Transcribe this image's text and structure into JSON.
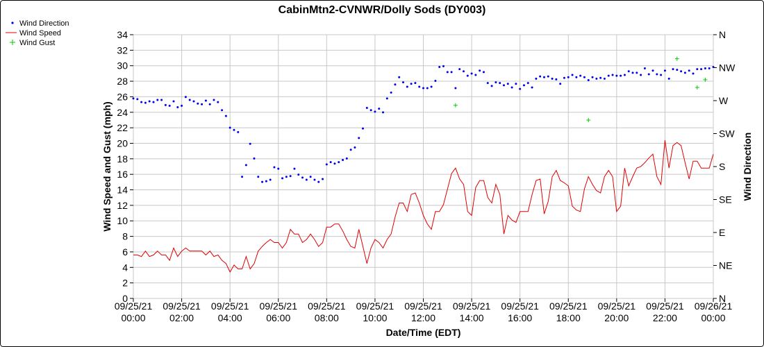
{
  "chart_data": {
    "type": "line",
    "title": "CabinMtn2-CVNWR/Dolly Sods (DY003)",
    "xlabel": "Date/Time (EDT)",
    "ylabel": "Wind Speed and Gust (mph)",
    "y2label": "Wind Direction",
    "x_ticks": [
      {
        "date": "09/25/21",
        "time": "00:00"
      },
      {
        "date": "09/25/21",
        "time": "02:00"
      },
      {
        "date": "09/25/21",
        "time": "04:00"
      },
      {
        "date": "09/25/21",
        "time": "06:00"
      },
      {
        "date": "09/25/21",
        "time": "08:00"
      },
      {
        "date": "09/25/21",
        "time": "10:00"
      },
      {
        "date": "09/25/21",
        "time": "12:00"
      },
      {
        "date": "09/25/21",
        "time": "14:00"
      },
      {
        "date": "09/25/21",
        "time": "16:00"
      },
      {
        "date": "09/25/21",
        "time": "18:00"
      },
      {
        "date": "09/25/21",
        "time": "20:00"
      },
      {
        "date": "09/25/21",
        "time": "22:00"
      },
      {
        "date": "09/26/21",
        "time": "00:00"
      }
    ],
    "xlim": [
      "2021-09-25T00:00",
      "2021-09-26T00:00"
    ],
    "ylim": [
      0,
      34
    ],
    "y_ticks": [
      0,
      2,
      4,
      6,
      8,
      10,
      12,
      14,
      16,
      18,
      20,
      22,
      24,
      26,
      28,
      30,
      32,
      34
    ],
    "y2_ticks": [
      "N",
      "NE",
      "E",
      "SE",
      "S",
      "SW",
      "W",
      "NW",
      "N"
    ],
    "grid": true,
    "legend_position": "top-left",
    "series": [
      {
        "name": "Wind Speed",
        "color": "#e00000",
        "style": "line",
        "x": [
          "2021-09-25T00:00",
          "2021-09-25T00:10",
          "2021-09-25T00:20",
          "2021-09-25T00:30",
          "2021-09-25T00:40",
          "2021-09-25T00:50",
          "2021-09-25T01:00",
          "2021-09-25T01:10",
          "2021-09-25T01:20",
          "2021-09-25T01:30",
          "2021-09-25T01:40",
          "2021-09-25T01:50",
          "2021-09-25T02:00",
          "2021-09-25T02:10",
          "2021-09-25T02:20",
          "2021-09-25T02:30",
          "2021-09-25T02:40",
          "2021-09-25T02:50",
          "2021-09-25T03:00",
          "2021-09-25T03:10",
          "2021-09-25T03:20",
          "2021-09-25T03:30",
          "2021-09-25T03:40",
          "2021-09-25T03:50",
          "2021-09-25T04:00",
          "2021-09-25T04:10",
          "2021-09-25T04:20",
          "2021-09-25T04:30",
          "2021-09-25T04:40",
          "2021-09-25T04:50",
          "2021-09-25T05:00",
          "2021-09-25T05:10",
          "2021-09-25T05:20",
          "2021-09-25T05:30",
          "2021-09-25T05:40",
          "2021-09-25T05:50",
          "2021-09-25T06:00",
          "2021-09-25T06:10",
          "2021-09-25T06:20",
          "2021-09-25T06:30",
          "2021-09-25T06:40",
          "2021-09-25T06:50",
          "2021-09-25T07:00",
          "2021-09-25T07:10",
          "2021-09-25T07:20",
          "2021-09-25T07:30",
          "2021-09-25T07:40",
          "2021-09-25T07:50",
          "2021-09-25T08:00",
          "2021-09-25T08:10",
          "2021-09-25T08:20",
          "2021-09-25T08:30",
          "2021-09-25T08:40",
          "2021-09-25T08:50",
          "2021-09-25T09:00",
          "2021-09-25T09:10",
          "2021-09-25T09:20",
          "2021-09-25T09:30",
          "2021-09-25T09:40",
          "2021-09-25T09:50",
          "2021-09-25T10:00",
          "2021-09-25T10:10",
          "2021-09-25T10:20",
          "2021-09-25T10:30",
          "2021-09-25T10:40",
          "2021-09-25T10:50",
          "2021-09-25T11:00",
          "2021-09-25T11:10",
          "2021-09-25T11:20",
          "2021-09-25T11:30",
          "2021-09-25T11:40",
          "2021-09-25T11:50",
          "2021-09-25T12:00",
          "2021-09-25T12:10",
          "2021-09-25T12:20",
          "2021-09-25T12:30",
          "2021-09-25T12:40",
          "2021-09-25T12:50",
          "2021-09-25T13:00",
          "2021-09-25T13:10",
          "2021-09-25T13:20",
          "2021-09-25T13:30",
          "2021-09-25T13:40",
          "2021-09-25T13:50",
          "2021-09-25T14:00",
          "2021-09-25T14:10",
          "2021-09-25T14:20",
          "2021-09-25T14:30",
          "2021-09-25T14:40",
          "2021-09-25T14:50",
          "2021-09-25T15:00",
          "2021-09-25T15:10",
          "2021-09-25T15:20",
          "2021-09-25T15:30",
          "2021-09-25T15:40",
          "2021-09-25T15:50",
          "2021-09-25T16:00",
          "2021-09-25T16:10",
          "2021-09-25T16:20",
          "2021-09-25T16:30",
          "2021-09-25T16:40",
          "2021-09-25T16:50",
          "2021-09-25T17:00",
          "2021-09-25T17:10",
          "2021-09-25T17:20",
          "2021-09-25T17:30",
          "2021-09-25T17:40",
          "2021-09-25T17:50",
          "2021-09-25T18:00",
          "2021-09-25T18:10",
          "2021-09-25T18:20",
          "2021-09-25T18:30",
          "2021-09-25T18:40",
          "2021-09-25T18:50",
          "2021-09-25T19:00",
          "2021-09-25T19:10",
          "2021-09-25T19:20",
          "2021-09-25T19:30",
          "2021-09-25T19:40",
          "2021-09-25T19:50",
          "2021-09-25T20:00",
          "2021-09-25T20:10",
          "2021-09-25T20:20",
          "2021-09-25T20:30",
          "2021-09-25T20:40",
          "2021-09-25T20:50",
          "2021-09-25T21:00",
          "2021-09-25T21:10",
          "2021-09-25T21:20",
          "2021-09-25T21:30",
          "2021-09-25T21:40",
          "2021-09-25T21:50",
          "2021-09-25T22:00",
          "2021-09-25T22:10",
          "2021-09-25T22:20",
          "2021-09-25T22:30",
          "2021-09-25T22:40",
          "2021-09-25T22:50",
          "2021-09-25T23:00",
          "2021-09-25T23:10",
          "2021-09-25T23:20",
          "2021-09-25T23:30",
          "2021-09-25T23:40",
          "2021-09-25T23:50",
          "2021-09-26T00:00"
        ],
        "values": [
          5.6,
          5.6,
          5.4,
          6.1,
          5.4,
          5.6,
          6.1,
          5.6,
          5.6,
          4.9,
          6.5,
          5.4,
          6.1,
          6.5,
          6.1,
          6.1,
          6.1,
          6.1,
          5.6,
          6.1,
          5.4,
          5.6,
          4.9,
          4.5,
          3.4,
          4.3,
          3.8,
          3.8,
          5.4,
          3.8,
          4.5,
          6.1,
          6.7,
          7.2,
          7.6,
          7.2,
          7.2,
          6.5,
          7.2,
          8.9,
          8.3,
          8.3,
          7.2,
          7.6,
          8.3,
          7.6,
          6.7,
          7.2,
          9.2,
          9.2,
          9.6,
          9.6,
          8.7,
          7.6,
          6.7,
          6.5,
          8.9,
          6.7,
          4.5,
          6.5,
          7.6,
          7.2,
          6.5,
          7.6,
          8.3,
          10.5,
          12.3,
          12.3,
          11.2,
          13.4,
          13.6,
          12.3,
          10.7,
          9.6,
          8.9,
          11.2,
          11.2,
          12.1,
          14.1,
          16.1,
          16.8,
          15.4,
          14.7,
          11.2,
          10.7,
          14.3,
          15.2,
          15.2,
          13.0,
          12.3,
          14.7,
          13.4,
          8.3,
          10.7,
          10.1,
          9.8,
          11.2,
          11.2,
          11.2,
          13.4,
          15.2,
          15.4,
          10.9,
          12.5,
          15.7,
          16.5,
          15.2,
          14.9,
          14.5,
          11.9,
          11.4,
          11.2,
          14.1,
          15.7,
          14.7,
          13.9,
          13.6,
          15.7,
          16.5,
          15.7,
          11.2,
          11.9,
          16.8,
          14.5,
          15.7,
          16.8,
          17.0,
          17.5,
          18.1,
          18.6,
          15.7,
          14.7,
          20.4,
          16.8,
          19.7,
          20.1,
          19.7,
          17.5,
          15.4,
          17.7,
          17.7,
          16.8,
          16.8,
          16.8,
          18.6
        ]
      },
      {
        "name": "Wind Gust",
        "color": "#00cc00",
        "style": "plus",
        "x": [
          "2021-09-25T13:20",
          "2021-09-25T18:50",
          "2021-09-25T22:30",
          "2021-09-25T23:20",
          "2021-09-25T23:40"
        ],
        "values": [
          24.9,
          23.0,
          30.9,
          27.2,
          28.2
        ]
      },
      {
        "name": "Wind Direction",
        "color": "#0000ee",
        "style": "dot",
        "axis": "y2",
        "ylim_degrees": [
          0,
          360
        ],
        "x": [
          "2021-09-25T00:00",
          "2021-09-25T00:10",
          "2021-09-25T00:20",
          "2021-09-25T00:30",
          "2021-09-25T00:40",
          "2021-09-25T00:50",
          "2021-09-25T01:00",
          "2021-09-25T01:10",
          "2021-09-25T01:20",
          "2021-09-25T01:30",
          "2021-09-25T01:40",
          "2021-09-25T01:50",
          "2021-09-25T02:00",
          "2021-09-25T02:10",
          "2021-09-25T02:20",
          "2021-09-25T02:30",
          "2021-09-25T02:40",
          "2021-09-25T02:50",
          "2021-09-25T03:00",
          "2021-09-25T03:10",
          "2021-09-25T03:20",
          "2021-09-25T03:30",
          "2021-09-25T03:40",
          "2021-09-25T03:50",
          "2021-09-25T04:00",
          "2021-09-25T04:10",
          "2021-09-25T04:20",
          "2021-09-25T04:30",
          "2021-09-25T04:40",
          "2021-09-25T04:50",
          "2021-09-25T05:00",
          "2021-09-25T05:10",
          "2021-09-25T05:20",
          "2021-09-25T05:30",
          "2021-09-25T05:40",
          "2021-09-25T05:50",
          "2021-09-25T06:00",
          "2021-09-25T06:10",
          "2021-09-25T06:20",
          "2021-09-25T06:30",
          "2021-09-25T06:40",
          "2021-09-25T06:50",
          "2021-09-25T07:00",
          "2021-09-25T07:10",
          "2021-09-25T07:20",
          "2021-09-25T07:30",
          "2021-09-25T07:40",
          "2021-09-25T07:50",
          "2021-09-25T08:00",
          "2021-09-25T08:10",
          "2021-09-25T08:20",
          "2021-09-25T08:30",
          "2021-09-25T08:40",
          "2021-09-25T08:50",
          "2021-09-25T09:00",
          "2021-09-25T09:10",
          "2021-09-25T09:20",
          "2021-09-25T09:30",
          "2021-09-25T09:40",
          "2021-09-25T09:50",
          "2021-09-25T10:00",
          "2021-09-25T10:10",
          "2021-09-25T10:20",
          "2021-09-25T10:30",
          "2021-09-25T10:40",
          "2021-09-25T10:50",
          "2021-09-25T11:00",
          "2021-09-25T11:10",
          "2021-09-25T11:20",
          "2021-09-25T11:30",
          "2021-09-25T11:40",
          "2021-09-25T11:50",
          "2021-09-25T12:00",
          "2021-09-25T12:10",
          "2021-09-25T12:20",
          "2021-09-25T12:30",
          "2021-09-25T12:40",
          "2021-09-25T12:50",
          "2021-09-25T13:00",
          "2021-09-25T13:10",
          "2021-09-25T13:20",
          "2021-09-25T13:30",
          "2021-09-25T13:40",
          "2021-09-25T13:50",
          "2021-09-25T14:00",
          "2021-09-25T14:10",
          "2021-09-25T14:20",
          "2021-09-25T14:30",
          "2021-09-25T14:40",
          "2021-09-25T14:50",
          "2021-09-25T15:00",
          "2021-09-25T15:10",
          "2021-09-25T15:20",
          "2021-09-25T15:30",
          "2021-09-25T15:40",
          "2021-09-25T15:50",
          "2021-09-25T16:00",
          "2021-09-25T16:10",
          "2021-09-25T16:20",
          "2021-09-25T16:30",
          "2021-09-25T16:40",
          "2021-09-25T16:50",
          "2021-09-25T17:00",
          "2021-09-25T17:10",
          "2021-09-25T17:20",
          "2021-09-25T17:30",
          "2021-09-25T17:40",
          "2021-09-25T17:50",
          "2021-09-25T18:00",
          "2021-09-25T18:10",
          "2021-09-25T18:20",
          "2021-09-25T18:30",
          "2021-09-25T18:40",
          "2021-09-25T18:50",
          "2021-09-25T19:00",
          "2021-09-25T19:10",
          "2021-09-25T19:20",
          "2021-09-25T19:30",
          "2021-09-25T19:40",
          "2021-09-25T19:50",
          "2021-09-25T20:00",
          "2021-09-25T20:10",
          "2021-09-25T20:20",
          "2021-09-25T20:30",
          "2021-09-25T20:40",
          "2021-09-25T20:50",
          "2021-09-25T21:00",
          "2021-09-25T21:10",
          "2021-09-25T21:20",
          "2021-09-25T21:30",
          "2021-09-25T21:40",
          "2021-09-25T21:50",
          "2021-09-25T22:00",
          "2021-09-25T22:10",
          "2021-09-25T22:20",
          "2021-09-25T22:30",
          "2021-09-25T22:40",
          "2021-09-25T22:50",
          "2021-09-25T23:00",
          "2021-09-25T23:10",
          "2021-09-25T23:20",
          "2021-09-25T23:30",
          "2021-09-25T23:40",
          "2021-09-25T23:50",
          "2021-09-26T00:00"
        ],
        "values": [
          273,
          272,
          268,
          267,
          269,
          268,
          271,
          271,
          264,
          263,
          269,
          261,
          263,
          275,
          271,
          269,
          266,
          265,
          270,
          265,
          271,
          268,
          257,
          249,
          233,
          230,
          227,
          166,
          182,
          211,
          191,
          166,
          159,
          160,
          162,
          179,
          177,
          164,
          166,
          167,
          177,
          169,
          165,
          162,
          166,
          162,
          159,
          163,
          183,
          186,
          184,
          186,
          189,
          191,
          203,
          206,
          219,
          232,
          260,
          257,
          255,
          259,
          254,
          273,
          281,
          292,
          302,
          295,
          289,
          293,
          294,
          289,
          287,
          287,
          289,
          297,
          316,
          317,
          309,
          309,
          287,
          313,
          310,
          304,
          307,
          305,
          311,
          309,
          294,
          290,
          295,
          294,
          291,
          293,
          288,
          293,
          286,
          291,
          294,
          288,
          300,
          303,
          302,
          303,
          300,
          299,
          293,
          301,
          302,
          305,
          302,
          304,
          302,
          298,
          302,
          300,
          301,
          300,
          304,
          305,
          304,
          304,
          305,
          310,
          308,
          308,
          305,
          314,
          306,
          311,
          306,
          305,
          311,
          300,
          313,
          312,
          310,
          308,
          311,
          307,
          313,
          313,
          314,
          314,
          316
        ]
      }
    ]
  }
}
